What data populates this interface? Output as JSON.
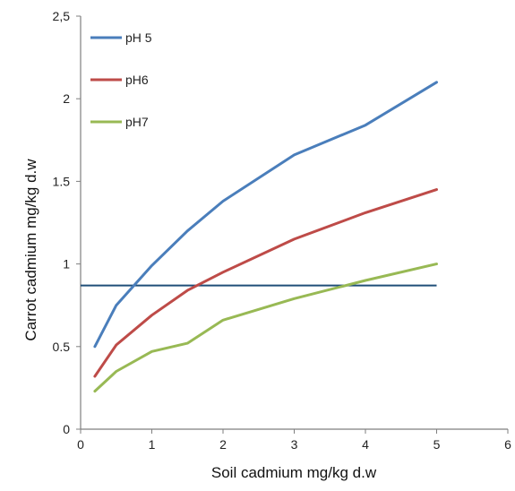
{
  "chart_data": {
    "type": "line",
    "title": "",
    "xlabel": "Soil cadmium mg/kg d.w",
    "ylabel": "Carrot cadmium mg/kg d.w",
    "xlim": [
      0,
      6
    ],
    "ylim": [
      0,
      2.5
    ],
    "x_ticks": [
      "0",
      "1",
      "2",
      "3",
      "4",
      "5",
      "6"
    ],
    "y_ticks": [
      "0",
      "0.5",
      "1",
      "1.5",
      "2",
      "2,5"
    ],
    "grid": false,
    "legend_position": "top-left",
    "series": [
      {
        "name": "pH 5",
        "color": "#4a7ebb",
        "x": [
          0.2,
          0.5,
          1,
          1.5,
          2,
          3,
          4,
          5
        ],
        "values": [
          0.5,
          0.75,
          0.99,
          1.2,
          1.38,
          1.66,
          1.84,
          2.1
        ]
      },
      {
        "name": "pH6",
        "color": "#be4b48",
        "x": [
          0.2,
          0.5,
          1,
          1.5,
          2,
          3,
          4,
          5
        ],
        "values": [
          0.32,
          0.51,
          0.69,
          0.84,
          0.95,
          1.15,
          1.31,
          1.45
        ]
      },
      {
        "name": "pH7",
        "color": "#98b954",
        "x": [
          0.2,
          0.5,
          1,
          1.5,
          2,
          3,
          4,
          5
        ],
        "values": [
          0.23,
          0.35,
          0.47,
          0.52,
          0.66,
          0.79,
          0.9,
          1.0
        ]
      }
    ],
    "reference_line": {
      "y": 0.87,
      "color": "#1f4e79"
    }
  }
}
